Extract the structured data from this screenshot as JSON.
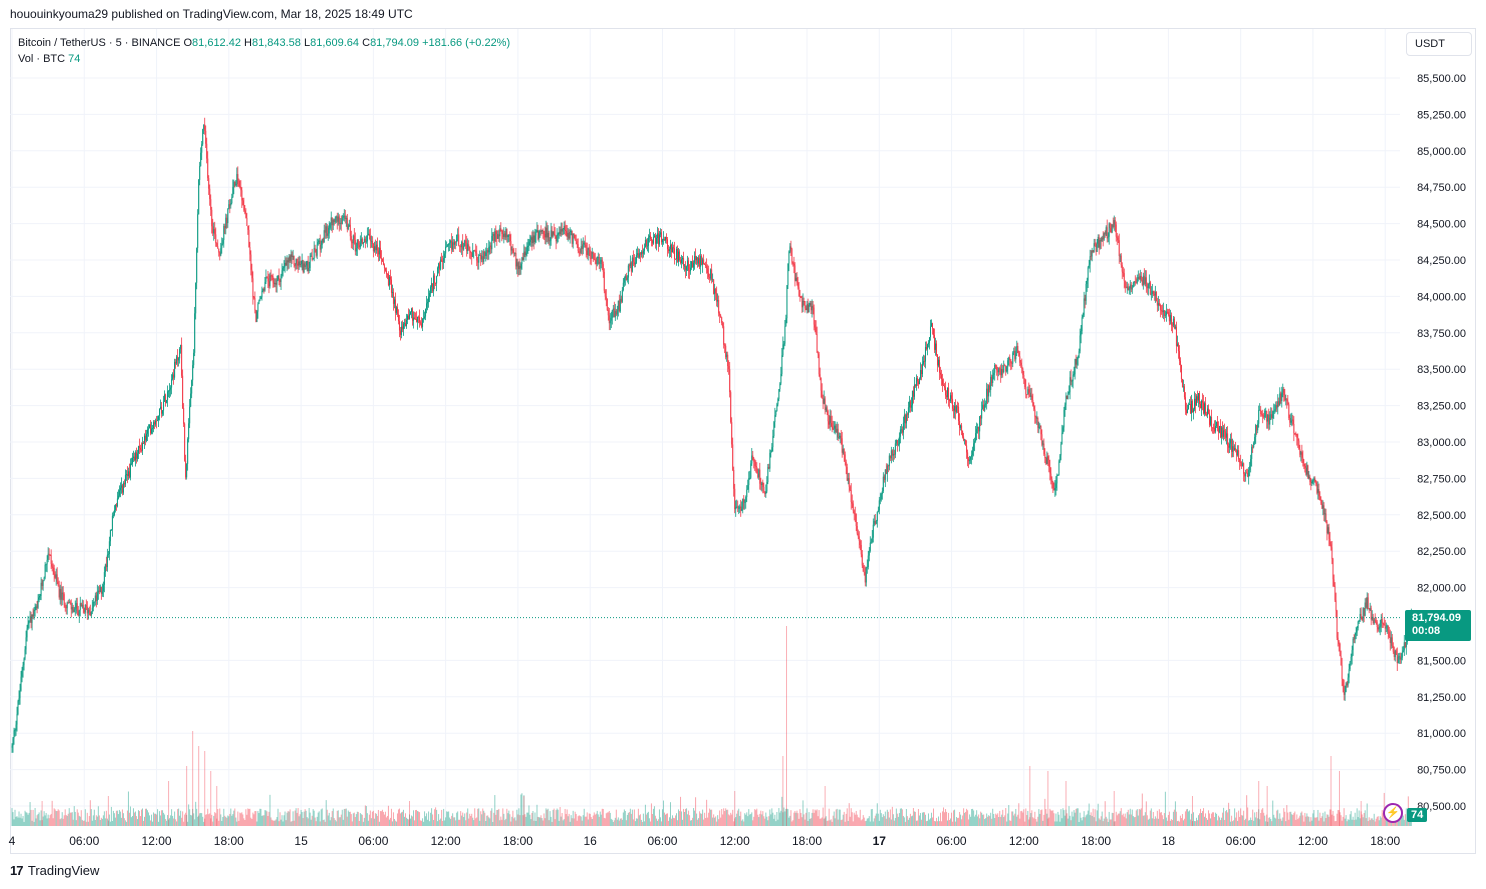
{
  "header": {
    "published": "hououinkyouma29 published on TradingView.com, Mar 18, 2025 18:49 UTC"
  },
  "legend": {
    "symbol": "Bitcoin / TetherUS · 5 · BINANCE",
    "open_label": "O",
    "open": "81,612.42",
    "high_label": "H",
    "high": "81,843.58",
    "low_label": "L",
    "low": "81,609.64",
    "close_label": "C",
    "close": "81,794.09",
    "change": "+181.66 (+0.22%)",
    "vol_label": "Vol · BTC",
    "vol_value": "74"
  },
  "currency_button": "USDT",
  "last_price": {
    "price": "81,794.09",
    "countdown": "00:08"
  },
  "volume_tag": "74",
  "footer": {
    "brand": "TradingView",
    "logo_glyph": "17"
  },
  "colors": {
    "up": "#089981",
    "down": "#f23645",
    "grid": "#f0f3fa",
    "text": "#131722"
  },
  "icons": {
    "bolt": "lightning-icon"
  },
  "chart_data": {
    "type": "candlestick",
    "title": "Bitcoin / TetherUS · 5 · BINANCE",
    "ylim": [
      80400,
      85800
    ],
    "y_ticks": [
      85500,
      85250,
      85000,
      84750,
      84500,
      84250,
      84000,
      83750,
      83500,
      83250,
      83000,
      82750,
      82500,
      82250,
      82000,
      81500,
      81250,
      81000,
      80750,
      80500
    ],
    "y_tick_labels": [
      "85,500.00",
      "85,250.00",
      "85,000.00",
      "84,750.00",
      "84,500.00",
      "84,250.00",
      "84,000.00",
      "83,750.00",
      "83,500.00",
      "83,250.00",
      "83,000.00",
      "82,750.00",
      "82,500.00",
      "82,250.00",
      "82,000.00",
      "81,500.00",
      "81,250.00",
      "81,000.00",
      "80,750.00",
      "80,500.00"
    ],
    "x_ticks": [
      {
        "label": "4",
        "t": 0,
        "bold": false
      },
      {
        "label": "06:00",
        "t": 6,
        "bold": false
      },
      {
        "label": "12:00",
        "t": 12,
        "bold": false
      },
      {
        "label": "18:00",
        "t": 18,
        "bold": false
      },
      {
        "label": "15",
        "t": 24,
        "bold": false
      },
      {
        "label": "06:00",
        "t": 30,
        "bold": false
      },
      {
        "label": "12:00",
        "t": 36,
        "bold": false
      },
      {
        "label": "18:00",
        "t": 42,
        "bold": false
      },
      {
        "label": "16",
        "t": 48,
        "bold": false
      },
      {
        "label": "06:00",
        "t": 54,
        "bold": false
      },
      {
        "label": "12:00",
        "t": 60,
        "bold": false
      },
      {
        "label": "18:00",
        "t": 66,
        "bold": false
      },
      {
        "label": "17",
        "t": 72,
        "bold": true
      },
      {
        "label": "06:00",
        "t": 78,
        "bold": false
      },
      {
        "label": "12:00",
        "t": 84,
        "bold": false
      },
      {
        "label": "18:00",
        "t": 90,
        "bold": false
      },
      {
        "label": "18",
        "t": 96,
        "bold": false
      },
      {
        "label": "06:00",
        "t": 102,
        "bold": false
      },
      {
        "label": "12:00",
        "t": 108,
        "bold": false
      },
      {
        "label": "18:00",
        "t": 114,
        "bold": false
      }
    ],
    "price_path": [
      [
        0,
        80900
      ],
      [
        0.6,
        81250
      ],
      [
        1.3,
        81750
      ],
      [
        2.1,
        81850
      ],
      [
        3,
        82250
      ],
      [
        4,
        81950
      ],
      [
        5,
        81850
      ],
      [
        6.5,
        81850
      ],
      [
        7.5,
        82000
      ],
      [
        8.5,
        82550
      ],
      [
        10,
        82850
      ],
      [
        11.5,
        83100
      ],
      [
        12.5,
        83250
      ],
      [
        13.3,
        83450
      ],
      [
        14,
        83650
      ],
      [
        14.4,
        82750
      ],
      [
        15.1,
        83650
      ],
      [
        15.5,
        84800
      ],
      [
        15.9,
        85200
      ],
      [
        16.6,
        84500
      ],
      [
        17.2,
        84300
      ],
      [
        18,
        84600
      ],
      [
        18.7,
        84850
      ],
      [
        19.5,
        84500
      ],
      [
        20.2,
        83850
      ],
      [
        21,
        84100
      ],
      [
        22,
        84100
      ],
      [
        23,
        84250
      ],
      [
        24.5,
        84200
      ],
      [
        25.5,
        84350
      ],
      [
        26.5,
        84500
      ],
      [
        27.5,
        84550
      ],
      [
        28.5,
        84350
      ],
      [
        29.5,
        84400
      ],
      [
        30.5,
        84300
      ],
      [
        31.5,
        84050
      ],
      [
        32.3,
        83750
      ],
      [
        33,
        83900
      ],
      [
        34,
        83800
      ],
      [
        35,
        84100
      ],
      [
        36,
        84300
      ],
      [
        37,
        84400
      ],
      [
        38,
        84300
      ],
      [
        39,
        84250
      ],
      [
        40,
        84400
      ],
      [
        41,
        84450
      ],
      [
        42,
        84200
      ],
      [
        43,
        84400
      ],
      [
        44,
        84450
      ],
      [
        45,
        84400
      ],
      [
        46,
        84450
      ],
      [
        47,
        84350
      ],
      [
        48,
        84300
      ],
      [
        49,
        84200
      ],
      [
        49.5,
        83850
      ],
      [
        50.5,
        83950
      ],
      [
        51,
        84150
      ],
      [
        52,
        84300
      ],
      [
        53,
        84400
      ],
      [
        54,
        84400
      ],
      [
        55,
        84300
      ],
      [
        56,
        84200
      ],
      [
        57,
        84250
      ],
      [
        58,
        84150
      ],
      [
        58.8,
        83850
      ],
      [
        59.5,
        83500
      ],
      [
        60,
        82500
      ],
      [
        60.8,
        82600
      ],
      [
        61.5,
        82900
      ],
      [
        62.5,
        82650
      ],
      [
        63.5,
        83250
      ],
      [
        64.2,
        83800
      ],
      [
        64.5,
        84350
      ],
      [
        65.5,
        83950
      ],
      [
        66.5,
        83900
      ],
      [
        67.2,
        83350
      ],
      [
        67.8,
        83150
      ],
      [
        68.7,
        83050
      ],
      [
        69.5,
        82700
      ],
      [
        70.2,
        82400
      ],
      [
        70.8,
        82050
      ],
      [
        71.5,
        82400
      ],
      [
        72.5,
        82800
      ],
      [
        73.5,
        83000
      ],
      [
        74.5,
        83250
      ],
      [
        75.5,
        83500
      ],
      [
        76.3,
        83800
      ],
      [
        77.2,
        83400
      ],
      [
        78.5,
        83200
      ],
      [
        79.5,
        82850
      ],
      [
        80.5,
        83200
      ],
      [
        81.5,
        83500
      ],
      [
        82.5,
        83500
      ],
      [
        83.5,
        83650
      ],
      [
        84,
        83400
      ],
      [
        85,
        83200
      ],
      [
        85.8,
        82900
      ],
      [
        86.6,
        82650
      ],
      [
        87.5,
        83300
      ],
      [
        88.5,
        83600
      ],
      [
        89.5,
        84300
      ],
      [
        90.5,
        84400
      ],
      [
        91.5,
        84500
      ],
      [
        92.5,
        84050
      ],
      [
        93.5,
        84150
      ],
      [
        94.5,
        84050
      ],
      [
        95.5,
        83900
      ],
      [
        96.5,
        83800
      ],
      [
        97.5,
        83200
      ],
      [
        98.5,
        83300
      ],
      [
        99.5,
        83150
      ],
      [
        100.5,
        83050
      ],
      [
        101.5,
        82950
      ],
      [
        102.5,
        82750
      ],
      [
        103.5,
        83200
      ],
      [
        104.5,
        83150
      ],
      [
        105.5,
        83350
      ],
      [
        106.5,
        83050
      ],
      [
        107.5,
        82800
      ],
      [
        108.5,
        82650
      ],
      [
        109.5,
        82300
      ],
      [
        110,
        81700
      ],
      [
        110.6,
        81250
      ],
      [
        111.5,
        81700
      ],
      [
        112.5,
        81900
      ],
      [
        113,
        81750
      ],
      [
        114,
        81750
      ],
      [
        115,
        81500
      ],
      [
        115.8,
        81650
      ],
      [
        116.2,
        81794
      ]
    ],
    "volume_spikes": [
      {
        "t": 15.0,
        "v": 95
      },
      {
        "t": 15.5,
        "v": 80
      },
      {
        "t": 16.0,
        "v": 75
      },
      {
        "t": 14.5,
        "v": 60
      },
      {
        "t": 13.0,
        "v": 45
      },
      {
        "t": 16.5,
        "v": 55
      },
      {
        "t": 17.0,
        "v": 40
      },
      {
        "t": 64.3,
        "v": 200
      },
      {
        "t": 64.0,
        "v": 70
      },
      {
        "t": 60.0,
        "v": 35
      },
      {
        "t": 67.5,
        "v": 40
      },
      {
        "t": 84.5,
        "v": 60
      },
      {
        "t": 86.0,
        "v": 55
      },
      {
        "t": 87.5,
        "v": 45
      },
      {
        "t": 109.5,
        "v": 70
      },
      {
        "t": 110.2,
        "v": 55
      },
      {
        "t": 103.5,
        "v": 45
      },
      {
        "t": 104.2,
        "v": 40
      },
      {
        "t": 8.0,
        "v": 30
      },
      {
        "t": 2.5,
        "v": 25
      },
      {
        "t": 33.0,
        "v": 25
      },
      {
        "t": 42.5,
        "v": 30
      },
      {
        "t": 98.0,
        "v": 30
      },
      {
        "t": 91.5,
        "v": 35
      },
      {
        "t": 112.0,
        "v": 25
      }
    ],
    "last_price": 81794.09
  }
}
